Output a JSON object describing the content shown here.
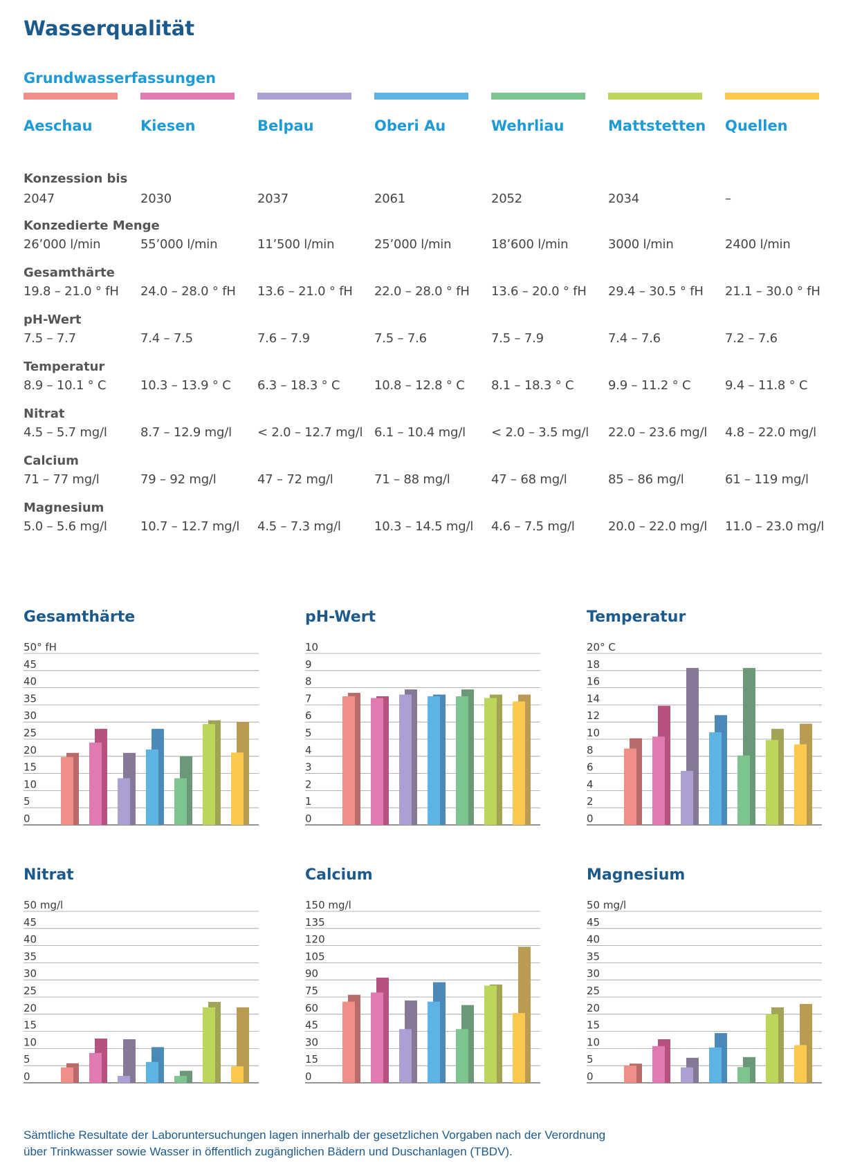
{
  "title": "Wasserqualität",
  "section_title": "Grundwasserfassungen",
  "sources": [
    {
      "name": "Aeschau",
      "color": "#ef8f87"
    },
    {
      "name": "Kiesen",
      "color": "#e07ab0"
    },
    {
      "name": "Belpau",
      "color": "#ab9fd4"
    },
    {
      "name": "Oberi Au",
      "color": "#5cb3e4"
    },
    {
      "name": "Wehrliau",
      "color": "#7dc48e"
    },
    {
      "name": "Mattstetten",
      "color": "#bcd65c"
    },
    {
      "name": "Quellen",
      "color": "#fcc94e"
    }
  ],
  "max_bar_colors": [
    "#b96b6b",
    "#b5527f",
    "#857997",
    "#4b8ab8",
    "#6b9977",
    "#a2a355",
    "#ba9b52"
  ],
  "table": [
    {
      "label": "Konzession bis",
      "values": [
        "2047",
        "2030",
        "2037",
        "2061",
        "2052",
        "2034",
        "–"
      ]
    },
    {
      "label": "Konzedierte Menge",
      "values": [
        "26’000 l/min",
        "55’000 l/min",
        "11’500 l/min",
        "25’000 l/min",
        "18’600 l/min",
        "3000 l/min",
        "2400 l/min"
      ]
    },
    {
      "label": "Gesamthärte",
      "values": [
        "19.8 – 21.0 ° fH",
        "24.0 – 28.0 ° fH",
        "13.6 – 21.0 ° fH",
        "22.0 – 28.0 ° fH",
        "13.6 – 20.0 ° fH",
        "29.4 – 30.5 ° fH",
        "21.1 – 30.0 ° fH"
      ]
    },
    {
      "label": "pH-Wert",
      "values": [
        "7.5 – 7.7",
        "7.4 – 7.5",
        "7.6 – 7.9",
        "7.5 – 7.6",
        "7.5 – 7.9",
        "7.4 – 7.6",
        "7.2 – 7.6"
      ]
    },
    {
      "label": "Temperatur",
      "values": [
        "8.9 – 10.1 ° C",
        "10.3 – 13.9 ° C",
        "6.3 – 18.3 ° C",
        "10.8 – 12.8 ° C",
        "8.1 – 18.3 ° C",
        "9.9 – 11.2 ° C",
        "9.4 – 11.8 ° C"
      ]
    },
    {
      "label": "Nitrat",
      "values": [
        "4.5 – 5.7 mg/l",
        "8.7 – 12.9 mg/l",
        "< 2.0 – 12.7 mg/l",
        "6.1 – 10.4 mg/l",
        "< 2.0 – 3.5 mg/l",
        "22.0 – 23.6 mg/l",
        "4.8 – 22.0 mg/l"
      ]
    },
    {
      "label": "Calcium",
      "values": [
        "71 – 77 mg/l",
        "79 – 92 mg/l",
        "47 – 72 mg/l",
        "71 – 88 mg/l",
        "47 – 68 mg/l",
        "85 – 86 mg/l",
        "61 – 119 mg/l"
      ]
    },
    {
      "label": "Magnesium",
      "values": [
        "5.0 – 5.6 mg/l",
        "10.7 – 12.7 mg/l",
        "4.5 – 7.3 mg/l",
        "10.3 – 14.5 mg/l",
        "4.6 – 7.5 mg/l",
        "20.0 – 22.0 mg/l",
        "11.0 – 23.0 mg/l"
      ]
    }
  ],
  "chart_data": [
    {
      "type": "bar",
      "title": "Gesamthärte",
      "ylabel": "50° fH",
      "ylim": [
        0,
        50
      ],
      "yticks": [
        "0",
        "5",
        "10",
        "15",
        "20",
        "25",
        "30",
        "35",
        "40",
        "45",
        "50° fH"
      ],
      "categories": [
        "Aeschau",
        "Kiesen",
        "Belpau",
        "Oberi Au",
        "Wehrliau",
        "Mattstetten",
        "Quellen"
      ],
      "series": [
        {
          "values": [
            19.8,
            24.0,
            13.6,
            22.0,
            13.6,
            29.4,
            21.1
          ]
        },
        {
          "values": [
            21.0,
            28.0,
            21.0,
            28.0,
            20.0,
            30.5,
            30.0
          ]
        }
      ]
    },
    {
      "type": "bar",
      "title": "pH-Wert",
      "ylabel": "",
      "ylim": [
        0,
        10
      ],
      "yticks": [
        "0",
        "1",
        "2",
        "3",
        "4",
        "5",
        "6",
        "7",
        "8",
        "9",
        "10"
      ],
      "categories": [
        "Aeschau",
        "Kiesen",
        "Belpau",
        "Oberi Au",
        "Wehrliau",
        "Mattstetten",
        "Quellen"
      ],
      "series": [
        {
          "values": [
            7.5,
            7.4,
            7.6,
            7.5,
            7.5,
            7.4,
            7.2
          ]
        },
        {
          "values": [
            7.7,
            7.5,
            7.9,
            7.6,
            7.9,
            7.6,
            7.6
          ]
        }
      ]
    },
    {
      "type": "bar",
      "title": "Temperatur",
      "ylabel": "20° C",
      "ylim": [
        0,
        20
      ],
      "yticks": [
        "0",
        "2",
        "4",
        "6",
        "8",
        "10",
        "12",
        "14",
        "16",
        "18",
        "20° C"
      ],
      "categories": [
        "Aeschau",
        "Kiesen",
        "Belpau",
        "Oberi Au",
        "Wehrliau",
        "Mattstetten",
        "Quellen"
      ],
      "series": [
        {
          "values": [
            8.9,
            10.3,
            6.3,
            10.8,
            8.1,
            9.9,
            9.4
          ]
        },
        {
          "values": [
            10.1,
            13.9,
            18.3,
            12.8,
            18.3,
            11.2,
            11.8
          ]
        }
      ]
    },
    {
      "type": "bar",
      "title": "Nitrat",
      "ylabel": "50 mg/l",
      "ylim": [
        0,
        50
      ],
      "yticks": [
        "0",
        "5",
        "10",
        "15",
        "20",
        "25",
        "30",
        "35",
        "40",
        "45",
        "50 mg/l"
      ],
      "categories": [
        "Aeschau",
        "Kiesen",
        "Belpau",
        "Oberi Au",
        "Wehrliau",
        "Mattstetten",
        "Quellen"
      ],
      "series": [
        {
          "values": [
            4.5,
            8.7,
            2.0,
            6.1,
            2.0,
            22.0,
            4.8
          ]
        },
        {
          "values": [
            5.7,
            12.9,
            12.7,
            10.4,
            3.5,
            23.6,
            22.0
          ]
        }
      ]
    },
    {
      "type": "bar",
      "title": "Calcium",
      "ylabel": "150 mg/l",
      "ylim": [
        0,
        150
      ],
      "yticks": [
        "0",
        "15",
        "30",
        "45",
        "60",
        "75",
        "90",
        "105",
        "120",
        "135",
        "150 mg/l"
      ],
      "categories": [
        "Aeschau",
        "Kiesen",
        "Belpau",
        "Oberi Au",
        "Wehrliau",
        "Mattstetten",
        "Quellen"
      ],
      "series": [
        {
          "values": [
            71,
            79,
            47,
            71,
            47,
            85,
            61
          ]
        },
        {
          "values": [
            77,
            92,
            72,
            88,
            68,
            86,
            119
          ]
        }
      ]
    },
    {
      "type": "bar",
      "title": "Magnesium",
      "ylabel": "50 mg/l",
      "ylim": [
        0,
        50
      ],
      "yticks": [
        "0",
        "5",
        "10",
        "15",
        "20",
        "25",
        "30",
        "35",
        "40",
        "45",
        "50 mg/l"
      ],
      "categories": [
        "Aeschau",
        "Kiesen",
        "Belpau",
        "Oberi Au",
        "Wehrliau",
        "Mattstetten",
        "Quellen"
      ],
      "series": [
        {
          "values": [
            5.0,
            10.7,
            4.5,
            10.3,
            4.6,
            20.0,
            11.0
          ]
        },
        {
          "values": [
            5.6,
            12.7,
            7.3,
            14.5,
            7.5,
            22.0,
            23.0
          ]
        }
      ]
    }
  ],
  "footnote": {
    "line1": "Sämtliche Resultate der Laboruntersuchungen lagen innerhalb der gesetzlichen Vorgaben nach der Verordnung",
    "line2": "über Trinkwasser sowie Wasser in öffentlich zugänglichen Bädern und Duschanlagen (TBDV)."
  }
}
